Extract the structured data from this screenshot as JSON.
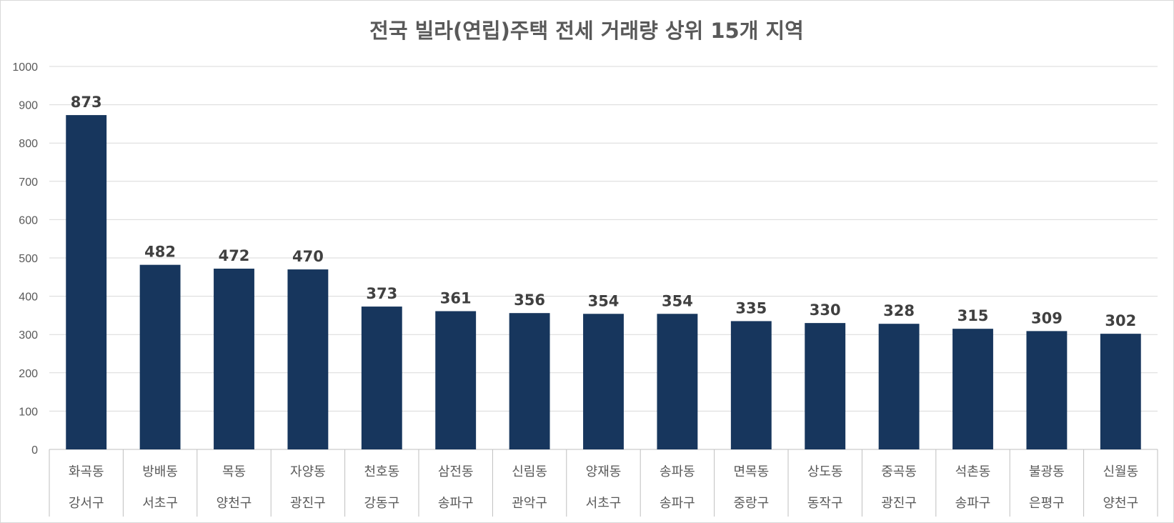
{
  "chart_data": {
    "type": "bar",
    "title": "전국 빌라(연립)주택 전세 거래량 상위 15개 지역",
    "xlabel": "",
    "ylabel": "",
    "ylim": [
      0,
      1000
    ],
    "yticks": [
      0,
      100,
      200,
      300,
      400,
      500,
      600,
      700,
      800,
      900,
      1000
    ],
    "grid": true,
    "legend": "none",
    "bar_color": "#17365d",
    "categories": [
      [
        "화곡동",
        "강서구"
      ],
      [
        "방배동",
        "서초구"
      ],
      [
        "목동",
        "양천구"
      ],
      [
        "자양동",
        "광진구"
      ],
      [
        "천호동",
        "강동구"
      ],
      [
        "삼전동",
        "송파구"
      ],
      [
        "신림동",
        "관악구"
      ],
      [
        "양재동",
        "서초구"
      ],
      [
        "송파동",
        "송파구"
      ],
      [
        "면목동",
        "중랑구"
      ],
      [
        "상도동",
        "동작구"
      ],
      [
        "중곡동",
        "광진구"
      ],
      [
        "석촌동",
        "송파구"
      ],
      [
        "불광동",
        "은평구"
      ],
      [
        "신월동",
        "양천구"
      ]
    ],
    "values": [
      873,
      482,
      472,
      470,
      373,
      361,
      356,
      354,
      354,
      335,
      330,
      328,
      315,
      309,
      302
    ]
  }
}
